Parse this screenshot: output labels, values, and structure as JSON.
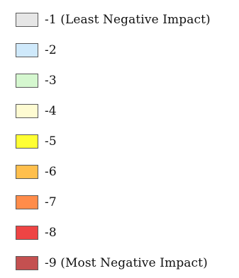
{
  "legend": {
    "items": [
      {
        "label": "-1 (Least Negative Impact)",
        "color": "#e6e6e6"
      },
      {
        "label": "-2",
        "color": "#cfe9fb"
      },
      {
        "label": "-3",
        "color": "#d5f7cf"
      },
      {
        "label": "-4",
        "color": "#fefbd2"
      },
      {
        "label": "-5",
        "color": "#ffff33"
      },
      {
        "label": "-6",
        "color": "#ffbf4d"
      },
      {
        "label": "-7",
        "color": "#ff8c4a"
      },
      {
        "label": "-8",
        "color": "#ee4444"
      },
      {
        "label": "-9 (Most Negative Impact)",
        "color": "#c45050"
      }
    ]
  }
}
